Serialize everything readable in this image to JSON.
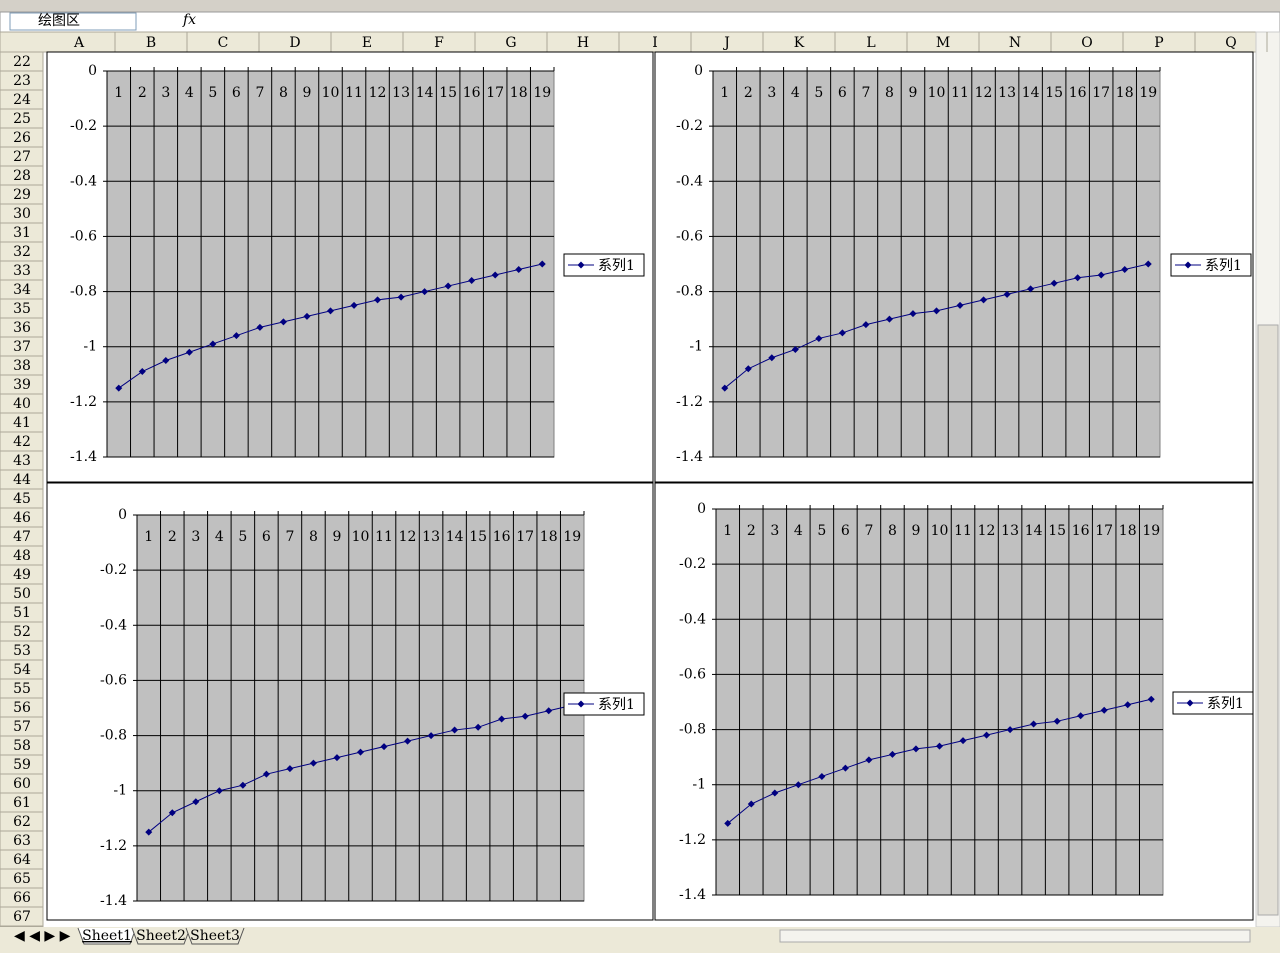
{
  "name_box": "绘图区",
  "formula_icon": "fx",
  "columns": [
    "A",
    "B",
    "C",
    "D",
    "E",
    "F",
    "G",
    "H",
    "I",
    "J",
    "K",
    "L",
    "M",
    "N",
    "O",
    "P",
    "Q"
  ],
  "rows": [
    22,
    23,
    24,
    25,
    26,
    27,
    28,
    29,
    30,
    31,
    32,
    33,
    34,
    35,
    36,
    37,
    38,
    39,
    40,
    41,
    42,
    43,
    44,
    45,
    46,
    47,
    48,
    49,
    50,
    51,
    52,
    53,
    54,
    55,
    56,
    57,
    58,
    59,
    60,
    61,
    62,
    63,
    64,
    65,
    66,
    67
  ],
  "sheet_tabs": [
    "Sheet1",
    "Sheet2",
    "Sheet3"
  ],
  "chart_data": [
    {
      "type": "line",
      "categories": [
        1,
        2,
        3,
        4,
        5,
        6,
        7,
        8,
        9,
        10,
        11,
        12,
        13,
        14,
        15,
        16,
        17,
        18,
        19
      ],
      "series": [
        {
          "name": "系列1",
          "color": "#000080",
          "values": [
            -1.15,
            -1.09,
            -1.05,
            -1.02,
            -0.99,
            -0.96,
            -0.93,
            -0.91,
            -0.89,
            -0.87,
            -0.85,
            -0.83,
            -0.82,
            -0.8,
            -0.78,
            -0.76,
            -0.74,
            -0.72,
            -0.7
          ]
        }
      ],
      "ylim": [
        -1.4,
        0
      ],
      "yticks": [
        0,
        -0.2,
        -0.4,
        -0.6,
        -0.8,
        -1,
        -1.2,
        -1.4
      ],
      "grid": true,
      "legend": "right",
      "plot_color": "#c0c0c0"
    },
    {
      "type": "line",
      "categories": [
        1,
        2,
        3,
        4,
        5,
        6,
        7,
        8,
        9,
        10,
        11,
        12,
        13,
        14,
        15,
        16,
        17,
        18,
        19
      ],
      "series": [
        {
          "name": "系列1",
          "color": "#000080",
          "values": [
            -1.15,
            -1.08,
            -1.04,
            -1.01,
            -0.97,
            -0.95,
            -0.92,
            -0.9,
            -0.88,
            -0.87,
            -0.85,
            -0.83,
            -0.81,
            -0.79,
            -0.77,
            -0.75,
            -0.74,
            -0.72,
            -0.7
          ]
        }
      ],
      "ylim": [
        -1.4,
        0
      ],
      "yticks": [
        0,
        -0.2,
        -0.4,
        -0.6,
        -0.8,
        -1,
        -1.2,
        -1.4
      ],
      "grid": true,
      "legend": "right",
      "plot_color": "#c0c0c0"
    },
    {
      "type": "line",
      "categories": [
        1,
        2,
        3,
        4,
        5,
        6,
        7,
        8,
        9,
        10,
        11,
        12,
        13,
        14,
        15,
        16,
        17,
        18,
        19
      ],
      "series": [
        {
          "name": "系列1",
          "color": "#000080",
          "values": [
            -1.15,
            -1.08,
            -1.04,
            -1.0,
            -0.98,
            -0.94,
            -0.92,
            -0.9,
            -0.88,
            -0.86,
            -0.84,
            -0.82,
            -0.8,
            -0.78,
            -0.77,
            -0.74,
            -0.73,
            -0.71,
            -0.69
          ]
        }
      ],
      "ylim": [
        -1.4,
        0
      ],
      "yticks": [
        0,
        -0.2,
        -0.4,
        -0.6,
        -0.8,
        -1,
        -1.2,
        -1.4
      ],
      "grid": true,
      "legend": "right",
      "plot_color": "#c0c0c0"
    },
    {
      "type": "line",
      "categories": [
        1,
        2,
        3,
        4,
        5,
        6,
        7,
        8,
        9,
        10,
        11,
        12,
        13,
        14,
        15,
        16,
        17,
        18,
        19
      ],
      "series": [
        {
          "name": "系列1",
          "color": "#000080",
          "values": [
            -1.14,
            -1.07,
            -1.03,
            -1.0,
            -0.97,
            -0.94,
            -0.91,
            -0.89,
            -0.87,
            -0.86,
            -0.84,
            -0.82,
            -0.8,
            -0.78,
            -0.77,
            -0.75,
            -0.73,
            -0.71,
            -0.69
          ]
        }
      ],
      "ylim": [
        -1.4,
        0
      ],
      "yticks": [
        0,
        -0.2,
        -0.4,
        -0.6,
        -0.8,
        -1,
        -1.2,
        -1.4
      ],
      "grid": true,
      "legend": "right",
      "plot_color": "#c0c0c0"
    }
  ]
}
